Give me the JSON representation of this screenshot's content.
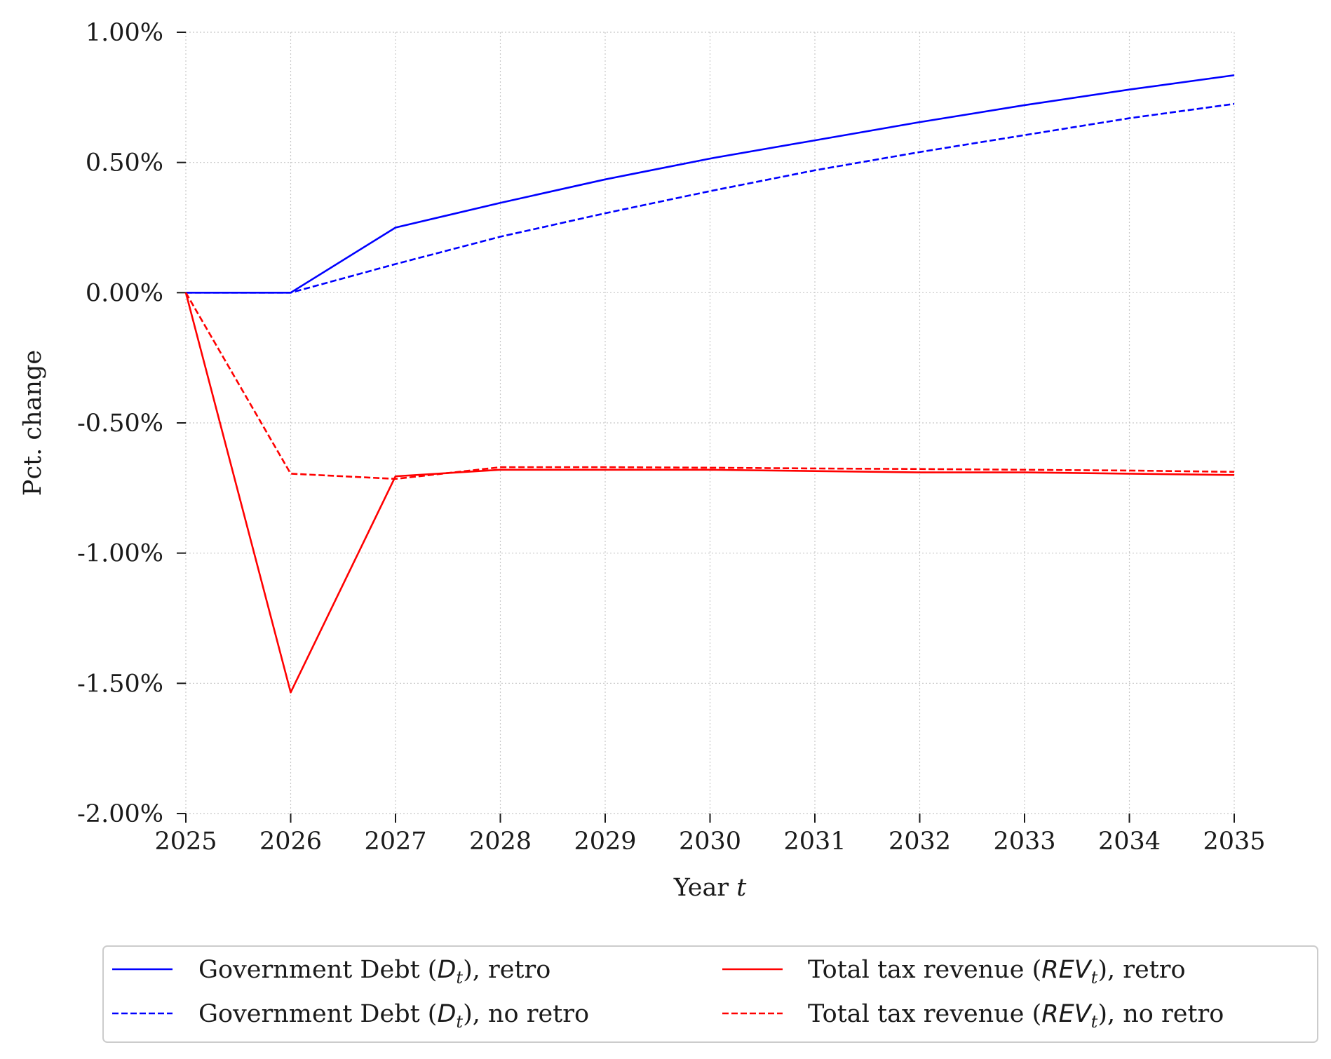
{
  "chart_data": {
    "type": "line",
    "title": "",
    "xlabel": "Year",
    "xlabel_var": "t",
    "ylabel": "Pct. change",
    "x": [
      2025,
      2026,
      2027,
      2028,
      2029,
      2030,
      2031,
      2032,
      2033,
      2034,
      2035
    ],
    "xlim": [
      2025,
      2035
    ],
    "ylim": [
      -2.0,
      1.0
    ],
    "yticks": [
      1.0,
      0.5,
      0.0,
      -0.5,
      -1.0,
      -1.5,
      -2.0
    ],
    "ytick_labels": [
      "1.00%",
      "0.50%",
      "0.00%",
      "-0.50%",
      "-1.00%",
      "-1.50%",
      "-2.00%"
    ],
    "xtick_labels": [
      "2025",
      "2026",
      "2027",
      "2028",
      "2029",
      "2030",
      "2031",
      "2032",
      "2033",
      "2034",
      "2035"
    ],
    "grid": true,
    "legend_position": "bottom-center",
    "series": [
      {
        "name": "Government Debt",
        "sym": "D",
        "sub": "t",
        "suffix": ", retro",
        "color": "#0000ff",
        "style": "solid",
        "values": [
          0.0,
          0.0,
          0.25,
          0.345,
          0.435,
          0.515,
          0.585,
          0.655,
          0.72,
          0.78,
          0.835
        ]
      },
      {
        "name": "Government Debt",
        "sym": "D",
        "sub": "t",
        "suffix": ", no retro",
        "color": "#0000ff",
        "style": "dashed",
        "values": [
          0.0,
          0.0,
          0.11,
          0.215,
          0.305,
          0.39,
          0.47,
          0.54,
          0.605,
          0.67,
          0.725
        ]
      },
      {
        "name": "Total tax revenue",
        "sym": "REV",
        "sub": "t",
        "suffix": ", retro",
        "color": "#ff0000",
        "style": "solid",
        "values": [
          0.0,
          -1.535,
          -0.705,
          -0.68,
          -0.68,
          -0.68,
          -0.685,
          -0.69,
          -0.69,
          -0.695,
          -0.7
        ]
      },
      {
        "name": "Total tax revenue",
        "sym": "REV",
        "sub": "t",
        "suffix": ", no retro",
        "color": "#ff0000",
        "style": "dashed",
        "values": [
          0.0,
          -0.695,
          -0.715,
          -0.67,
          -0.67,
          -0.672,
          -0.675,
          -0.677,
          -0.68,
          -0.683,
          -0.688
        ]
      }
    ]
  }
}
